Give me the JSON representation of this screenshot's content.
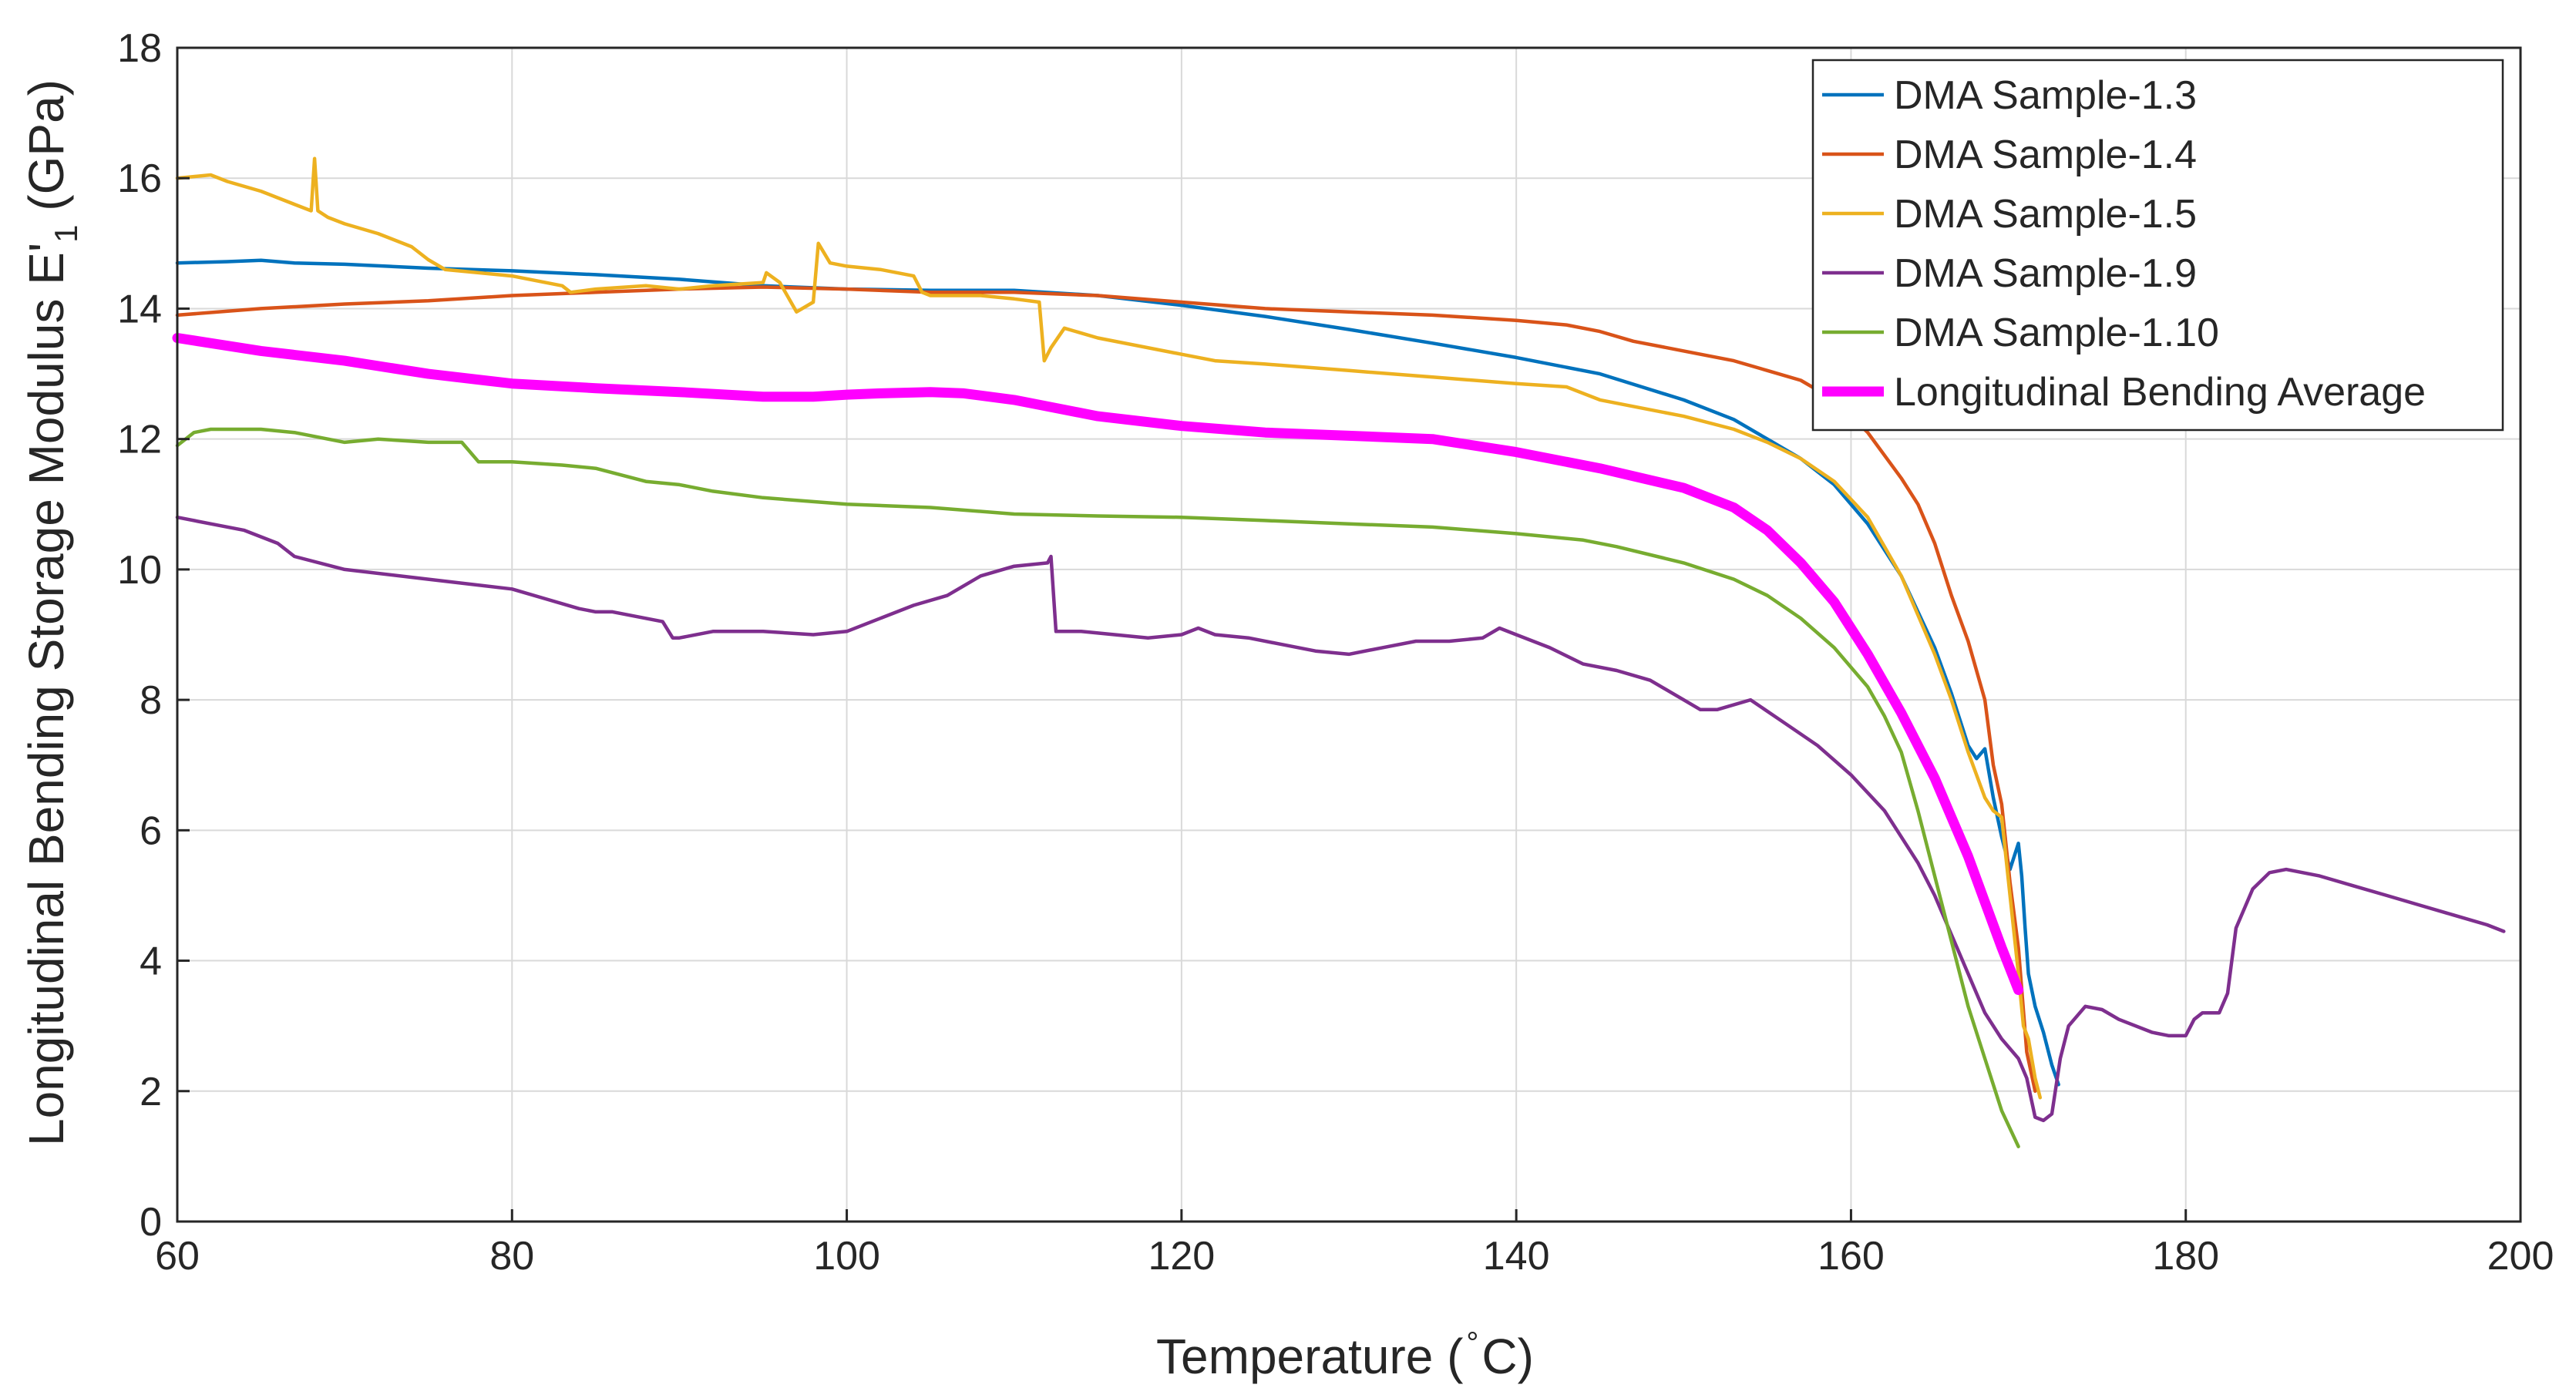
{
  "chart_data": {
    "type": "line",
    "title": "",
    "xlabel": "Temperature (°C)",
    "ylabel": "Longitudinal Bending Storage Modulus E'1 (GPa)",
    "xlabel_parts": {
      "main": "Temperature (",
      "superscript": "°",
      "tail": "C)"
    },
    "ylabel_parts": {
      "main": "Longitudinal Bending Storage Modulus E'",
      "subscript": "1",
      "tail": " (GPa)"
    },
    "xlim": [
      60,
      200
    ],
    "ylim": [
      0,
      18
    ],
    "xticks": [
      "60",
      "80",
      "100",
      "120",
      "140",
      "160",
      "180",
      "200"
    ],
    "yticks": [
      "0",
      "2",
      "4",
      "6",
      "8",
      "10",
      "12",
      "14",
      "16",
      "18"
    ],
    "grid": true,
    "legend_position": "top-right",
    "series": [
      {
        "name": "DMA Sample-1.3",
        "color": "#0072BD",
        "emphasis": false,
        "x": [
          60,
          63,
          65,
          67,
          70,
          75,
          80,
          85,
          90,
          95,
          100,
          105,
          110,
          115,
          120,
          125,
          130,
          135,
          140,
          145,
          150,
          153,
          155,
          157,
          159,
          161,
          163,
          165,
          166,
          167,
          167.5,
          168,
          168.5,
          169,
          169.5,
          170,
          170.2,
          170.4,
          170.6,
          171,
          171.5,
          172,
          172.4
        ],
        "y": [
          14.7,
          14.72,
          14.74,
          14.7,
          14.68,
          14.62,
          14.58,
          14.52,
          14.45,
          14.35,
          14.3,
          14.28,
          14.28,
          14.2,
          14.05,
          13.88,
          13.68,
          13.47,
          13.25,
          13.0,
          12.6,
          12.3,
          12.0,
          11.7,
          11.3,
          10.7,
          9.9,
          8.8,
          8.1,
          7.3,
          7.1,
          7.25,
          6.5,
          5.9,
          5.4,
          5.8,
          5.3,
          4.5,
          3.8,
          3.3,
          2.9,
          2.4,
          2.1
        ]
      },
      {
        "name": "DMA Sample-1.4",
        "color": "#D95319",
        "emphasis": false,
        "x": [
          60,
          65,
          70,
          75,
          80,
          85,
          90,
          95,
          100,
          105,
          110,
          115,
          120,
          125,
          130,
          135,
          140,
          143,
          145,
          147,
          150,
          153,
          155,
          157,
          159,
          161,
          163,
          164,
          165,
          166,
          167,
          168,
          168.5,
          169,
          169.5,
          170,
          170.5,
          171
        ],
        "y": [
          13.9,
          14.0,
          14.07,
          14.12,
          14.2,
          14.25,
          14.3,
          14.33,
          14.3,
          14.25,
          14.25,
          14.2,
          14.1,
          14.0,
          13.95,
          13.9,
          13.82,
          13.75,
          13.65,
          13.5,
          13.35,
          13.2,
          13.05,
          12.9,
          12.6,
          12.1,
          11.4,
          11.0,
          10.4,
          9.6,
          8.9,
          8.0,
          7.0,
          6.4,
          5.2,
          4.2,
          2.6,
          2.0
        ]
      },
      {
        "name": "DMA Sample-1.5",
        "color": "#EDB120",
        "emphasis": false,
        "x": [
          60,
          62,
          63,
          65,
          66,
          67,
          68,
          68.2,
          68.4,
          69,
          70,
          72,
          74,
          75,
          76,
          78,
          80,
          82,
          83,
          83.5,
          85,
          88,
          90,
          92,
          95,
          95.2,
          96,
          97,
          98,
          98.3,
          99,
          100,
          102,
          104,
          104.5,
          105,
          108,
          110,
          111.5,
          111.8,
          112.2,
          113,
          115,
          120,
          122,
          125,
          130,
          135,
          140,
          143,
          145,
          150,
          153,
          155,
          157,
          159,
          161,
          163,
          165,
          166,
          167,
          168,
          168.5,
          169,
          169.5,
          170,
          170.3,
          170.6,
          171,
          171.3
        ],
        "y": [
          16.0,
          16.05,
          15.95,
          15.8,
          15.7,
          15.6,
          15.5,
          16.3,
          15.5,
          15.4,
          15.3,
          15.15,
          14.95,
          14.75,
          14.6,
          14.55,
          14.5,
          14.4,
          14.35,
          14.25,
          14.3,
          14.35,
          14.3,
          14.35,
          14.4,
          14.55,
          14.4,
          13.95,
          14.1,
          15.0,
          14.7,
          14.65,
          14.6,
          14.5,
          14.25,
          14.2,
          14.2,
          14.15,
          14.1,
          13.2,
          13.4,
          13.7,
          13.55,
          13.3,
          13.2,
          13.15,
          13.05,
          12.95,
          12.85,
          12.8,
          12.6,
          12.35,
          12.15,
          11.95,
          11.7,
          11.35,
          10.8,
          9.9,
          8.7,
          8.0,
          7.2,
          6.5,
          6.3,
          6.2,
          5.0,
          3.8,
          3.0,
          2.8,
          2.2,
          1.9
        ]
      },
      {
        "name": "DMA Sample-1.9",
        "color": "#7E2F8E",
        "emphasis": false,
        "x": [
          60,
          62,
          64,
          66,
          67,
          70,
          75,
          80,
          82,
          84,
          85,
          86,
          89,
          89.6,
          90,
          92,
          95,
          98,
          100,
          102,
          104,
          106,
          108,
          110,
          112,
          112.2,
          112.5,
          114,
          116,
          118,
          120,
          121,
          122,
          124,
          126,
          128,
          130,
          132,
          134,
          136,
          138,
          139,
          140,
          142,
          144,
          146,
          148,
          150,
          151,
          152,
          154,
          156,
          158,
          160,
          162,
          163,
          164,
          165,
          166,
          167,
          168,
          169,
          170,
          170.5,
          171,
          171.5,
          172,
          172.5,
          173,
          174,
          175,
          176,
          178,
          179,
          180,
          180.5,
          181,
          182,
          182.5,
          183,
          184,
          185,
          186,
          188,
          190,
          192,
          194,
          196,
          198,
          199
        ],
        "y": [
          10.8,
          10.7,
          10.6,
          10.4,
          10.2,
          10.0,
          9.85,
          9.7,
          9.55,
          9.4,
          9.35,
          9.35,
          9.2,
          8.95,
          8.95,
          9.05,
          9.05,
          9.0,
          9.05,
          9.25,
          9.45,
          9.6,
          9.9,
          10.05,
          10.1,
          10.2,
          9.05,
          9.05,
          9.0,
          8.95,
          9.0,
          9.1,
          9.0,
          8.95,
          8.85,
          8.75,
          8.7,
          8.8,
          8.9,
          8.9,
          8.95,
          9.1,
          9.0,
          8.8,
          8.55,
          8.45,
          8.3,
          8.0,
          7.85,
          7.85,
          8.0,
          7.65,
          7.3,
          6.85,
          6.3,
          5.9,
          5.5,
          5.0,
          4.4,
          3.8,
          3.2,
          2.8,
          2.5,
          2.2,
          1.6,
          1.55,
          1.65,
          2.5,
          3.0,
          3.3,
          3.25,
          3.1,
          2.9,
          2.85,
          2.85,
          3.1,
          3.2,
          3.2,
          3.5,
          4.5,
          5.1,
          5.35,
          5.4,
          5.3,
          5.15,
          5.0,
          4.85,
          4.7,
          4.55,
          4.45
        ]
      },
      {
        "name": "DMA Sample-1.10",
        "color": "#77AC30",
        "emphasis": false,
        "x": [
          60,
          61,
          62,
          65,
          67,
          68,
          70,
          72,
          75,
          77,
          78,
          80,
          83,
          85,
          88,
          90,
          92,
          95,
          100,
          105,
          110,
          115,
          120,
          125,
          130,
          135,
          140,
          144,
          146,
          150,
          153,
          155,
          157,
          159,
          161,
          162,
          163,
          164,
          165,
          166,
          167,
          168,
          169,
          170
        ],
        "y": [
          11.9,
          12.1,
          12.15,
          12.15,
          12.1,
          12.05,
          11.95,
          12.0,
          11.95,
          11.95,
          11.65,
          11.65,
          11.6,
          11.55,
          11.35,
          11.3,
          11.2,
          11.1,
          11.0,
          10.95,
          10.85,
          10.82,
          10.8,
          10.75,
          10.7,
          10.65,
          10.55,
          10.45,
          10.35,
          10.1,
          9.85,
          9.6,
          9.25,
          8.8,
          8.2,
          7.75,
          7.2,
          6.3,
          5.3,
          4.3,
          3.3,
          2.5,
          1.7,
          1.15
        ]
      },
      {
        "name": "Longitudinal Bending Average",
        "color": "#FF00FF",
        "emphasis": true,
        "x": [
          60,
          65,
          70,
          75,
          80,
          85,
          90,
          95,
          98,
          100,
          102,
          105,
          107,
          110,
          113,
          115,
          120,
          125,
          130,
          135,
          140,
          143,
          145,
          150,
          153,
          155,
          157,
          159,
          161,
          163,
          165,
          166,
          167,
          168,
          169,
          170
        ],
        "y": [
          13.55,
          13.35,
          13.2,
          13.0,
          12.85,
          12.78,
          12.72,
          12.65,
          12.65,
          12.68,
          12.7,
          12.72,
          12.7,
          12.6,
          12.45,
          12.35,
          12.2,
          12.1,
          12.05,
          12.0,
          11.8,
          11.65,
          11.55,
          11.25,
          10.95,
          10.6,
          10.1,
          9.5,
          8.7,
          7.8,
          6.8,
          6.2,
          5.6,
          4.9,
          4.2,
          3.55
        ]
      }
    ]
  }
}
